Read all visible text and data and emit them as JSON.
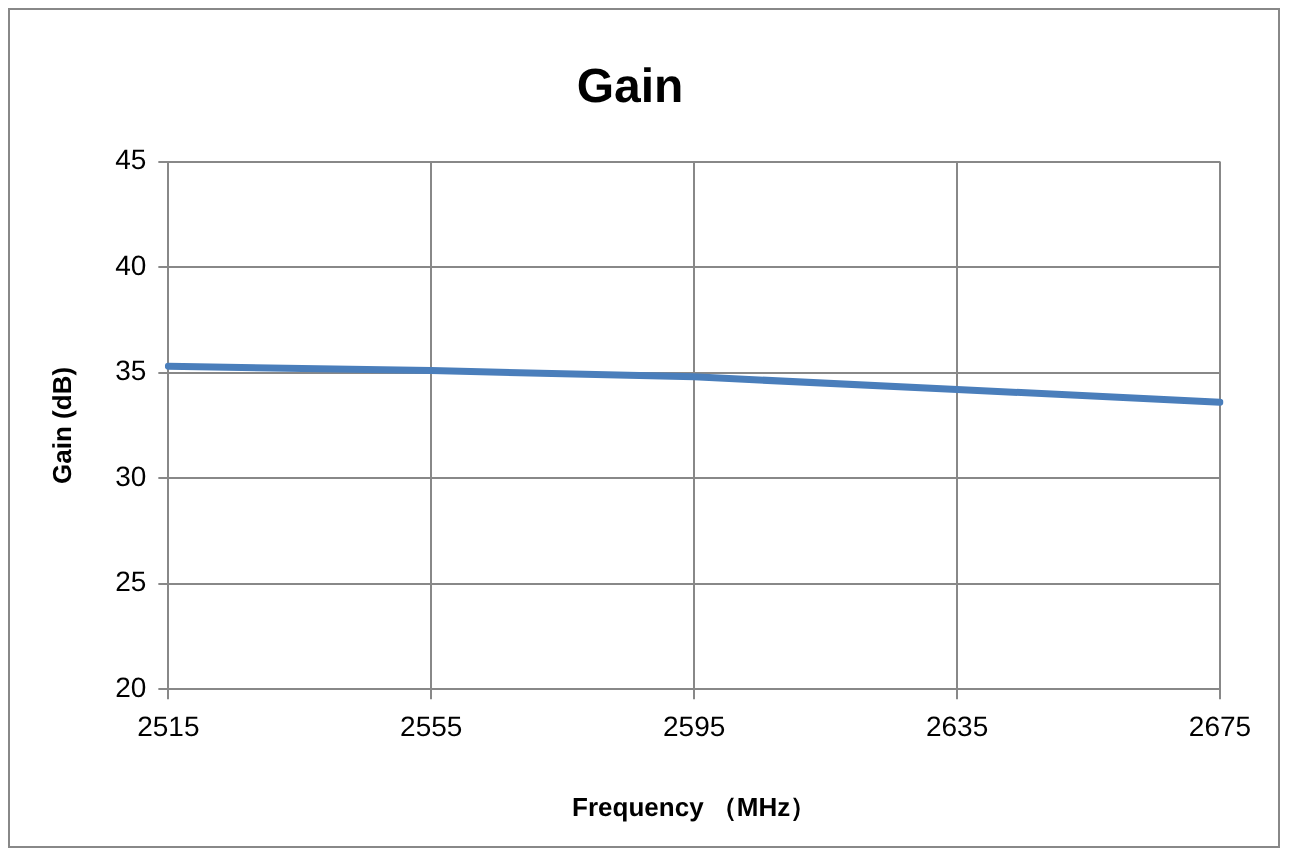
{
  "chart_data": {
    "type": "line",
    "title": "Gain",
    "xlabel": "Frequency （MHz）",
    "ylabel": "Gain (dB)",
    "categories": [
      "2515",
      "2555",
      "2595",
      "2635",
      "2675"
    ],
    "series": [
      {
        "color": "#4a7ebb",
        "values": [
          35.3,
          35.1,
          34.8,
          34.2,
          33.6
        ]
      }
    ],
    "ylim": [
      20,
      45
    ],
    "yticks": [
      20,
      25,
      30,
      35,
      40,
      45
    ],
    "grid": true,
    "legend": false,
    "marker": "none",
    "line_style": "solid"
  }
}
